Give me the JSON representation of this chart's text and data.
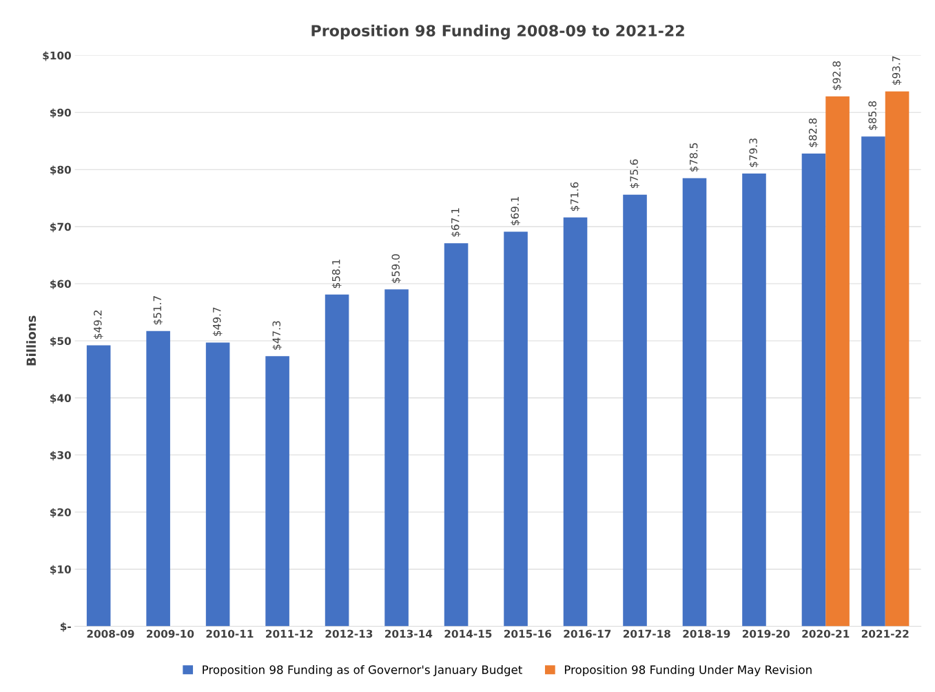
{
  "chart_data": {
    "type": "bar",
    "title": "Proposition 98 Funding 2008-09 to 2021-22",
    "ylabel": "Billions",
    "categories": [
      "2008-09",
      "2009-10",
      "2010-11",
      "2011-12",
      "2012-13",
      "2013-14",
      "2014-15",
      "2015-16",
      "2016-17",
      "2017-18",
      "2018-19",
      "2019-20",
      "2020-21",
      "2021-22"
    ],
    "series": [
      {
        "name": "Proposition 98 Funding as of Governor's January Budget",
        "color": "#4472c4",
        "values": [
          49.2,
          51.7,
          49.7,
          47.3,
          58.1,
          59.0,
          67.1,
          69.1,
          71.6,
          75.6,
          78.5,
          79.3,
          82.8,
          85.8
        ],
        "value_labels": [
          "$49.2",
          "$51.7",
          "$49.7",
          "$47.3",
          "$58.1",
          "$59.0",
          "$67.1",
          "$69.1",
          "$71.6",
          "$75.6",
          "$78.5",
          "$79.3",
          "$82.8",
          "$85.8"
        ]
      },
      {
        "name": "Proposition 98 Funding Under May Revision",
        "color": "#ed7d31",
        "values": [
          null,
          null,
          null,
          null,
          null,
          null,
          null,
          null,
          null,
          null,
          null,
          null,
          92.8,
          93.7
        ],
        "value_labels": [
          null,
          null,
          null,
          null,
          null,
          null,
          null,
          null,
          null,
          null,
          null,
          null,
          "$92.8",
          "$93.7"
        ]
      }
    ],
    "ylim": [
      0,
      100
    ],
    "yticks": [
      {
        "value": 0,
        "label": "$-"
      },
      {
        "value": 10,
        "label": "$10"
      },
      {
        "value": 20,
        "label": "$20"
      },
      {
        "value": 30,
        "label": "$30"
      },
      {
        "value": 40,
        "label": "$40"
      },
      {
        "value": 50,
        "label": "$50"
      },
      {
        "value": 60,
        "label": "$60"
      },
      {
        "value": 70,
        "label": "$70"
      },
      {
        "value": 80,
        "label": "$80"
      },
      {
        "value": 90,
        "label": "$90"
      },
      {
        "value": 100,
        "label": "$100"
      }
    ],
    "grid": "y",
    "legend": "bottom"
  }
}
